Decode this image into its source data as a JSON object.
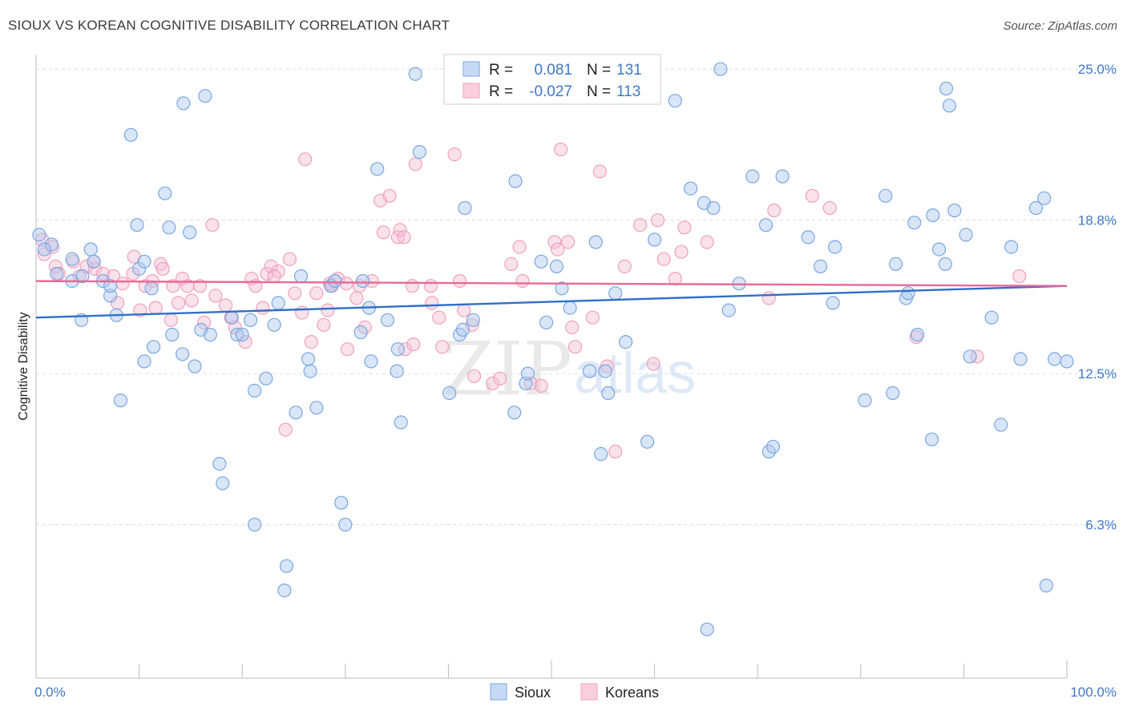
{
  "header": {
    "title": "SIOUX VS KOREAN COGNITIVE DISABILITY CORRELATION CHART",
    "source": "Source: ZipAtlas.com"
  },
  "watermark": {
    "zip": "ZIP",
    "atlas": "atlas"
  },
  "legend": {
    "rows": [
      {
        "r_label": "R =",
        "r_value": "0.081",
        "n_label": "N =",
        "n_value": "131",
        "color": "#7aa6e0"
      },
      {
        "r_label": "R =",
        "r_value": "-0.027",
        "n_label": "N =",
        "n_value": "113",
        "color": "#f0a0bc"
      }
    ]
  },
  "bottom_legend": [
    {
      "label": "Sioux",
      "color": "#7aa6e0"
    },
    {
      "label": "Koreans",
      "color": "#f0a0bc"
    }
  ],
  "chart_data": {
    "type": "scatter",
    "title": "SIOUX VS KOREAN COGNITIVE DISABILITY CORRELATION CHART",
    "xlabel": "",
    "ylabel": "Cognitive Disability",
    "xlim": [
      0,
      100
    ],
    "ylim": [
      0,
      25.6
    ],
    "x_tick_labels": [
      "0.0%",
      "100.0%"
    ],
    "y_ticks": [
      6.3,
      12.5,
      18.8,
      25.0
    ],
    "y_tick_labels": [
      "6.3%",
      "12.5%",
      "18.8%",
      "25.0%"
    ],
    "grid": true,
    "legend_position": "top-center",
    "series": [
      {
        "name": "Sioux",
        "color": "#7aa6e0",
        "line_color": "#2f6fc9",
        "trend": {
          "x": [
            0,
            100
          ],
          "y": [
            14.8,
            16.1
          ]
        },
        "points": [
          [
            0.3,
            18.2
          ],
          [
            1.5,
            17.8
          ],
          [
            0.8,
            17.6
          ],
          [
            2,
            16.6
          ],
          [
            3.5,
            17.2
          ],
          [
            3.5,
            16.3
          ],
          [
            4.5,
            16.5
          ],
          [
            4.4,
            14.7
          ],
          [
            5.3,
            17.6
          ],
          [
            5.6,
            17.1
          ],
          [
            6.5,
            16.3
          ],
          [
            7.2,
            15.7
          ],
          [
            7.8,
            14.9
          ],
          [
            8.2,
            11.4
          ],
          [
            9.2,
            22.3
          ],
          [
            9.8,
            18.6
          ],
          [
            10,
            16.8
          ],
          [
            10.5,
            13
          ],
          [
            10.5,
            17.1
          ],
          [
            11.2,
            16
          ],
          [
            11.4,
            13.6
          ],
          [
            12.5,
            19.9
          ],
          [
            12.9,
            18.5
          ],
          [
            13.2,
            14.1
          ],
          [
            14.2,
            13.3
          ],
          [
            14.3,
            23.6
          ],
          [
            14.9,
            18.3
          ],
          [
            15.4,
            12.8
          ],
          [
            16,
            14.3
          ],
          [
            16.4,
            23.9
          ],
          [
            16.9,
            14.1
          ],
          [
            17.8,
            8.8
          ],
          [
            18.1,
            8
          ],
          [
            19,
            14.8
          ],
          [
            19.5,
            14.1
          ],
          [
            20,
            14.1
          ],
          [
            20.8,
            14.7
          ],
          [
            21.2,
            11.8
          ],
          [
            21.2,
            6.3
          ],
          [
            22.3,
            12.3
          ],
          [
            23.1,
            14.5
          ],
          [
            23.5,
            15.4
          ],
          [
            24.1,
            3.6
          ],
          [
            24.3,
            4.6
          ],
          [
            25.2,
            10.9
          ],
          [
            25.7,
            16.5
          ],
          [
            26.4,
            13.1
          ],
          [
            26.6,
            12.6
          ],
          [
            27.2,
            11.1
          ],
          [
            28.6,
            16.1
          ],
          [
            29,
            16.3
          ],
          [
            29.6,
            7.2
          ],
          [
            30,
            6.3
          ],
          [
            31.5,
            14.2
          ],
          [
            31.7,
            16.3
          ],
          [
            32.3,
            15.2
          ],
          [
            32.5,
            13
          ],
          [
            33.1,
            20.9
          ],
          [
            34.1,
            14.7
          ],
          [
            35.1,
            13.5
          ],
          [
            35,
            12.6
          ],
          [
            35.4,
            10.5
          ],
          [
            36.8,
            24.8
          ],
          [
            40.1,
            11.7
          ],
          [
            41.1,
            14.1
          ],
          [
            41.4,
            14.3
          ],
          [
            41.6,
            19.3
          ],
          [
            42.4,
            14.7
          ],
          [
            46.5,
            20.4
          ],
          [
            47.5,
            12.1
          ],
          [
            47.7,
            12.5
          ],
          [
            49,
            17.1
          ],
          [
            49.5,
            14.6
          ],
          [
            50.5,
            16.9
          ],
          [
            51,
            16
          ],
          [
            51.8,
            15.2
          ],
          [
            53.7,
            12.6
          ],
          [
            54.3,
            17.9
          ],
          [
            54.8,
            9.2
          ],
          [
            55.5,
            11.7
          ],
          [
            55.2,
            12.6
          ],
          [
            56.2,
            15.8
          ],
          [
            57.2,
            13.8
          ],
          [
            59.3,
            9.7
          ],
          [
            60,
            18
          ],
          [
            62,
            23.7
          ],
          [
            63.5,
            20.1
          ],
          [
            64.8,
            19.5
          ],
          [
            65.7,
            19.3
          ],
          [
            66.4,
            25
          ],
          [
            67.2,
            15.1
          ],
          [
            68.2,
            16.2
          ],
          [
            69.5,
            20.6
          ],
          [
            70.8,
            18.6
          ],
          [
            71.1,
            9.3
          ],
          [
            71.5,
            9.5
          ],
          [
            72.4,
            20.6
          ],
          [
            74.9,
            18.1
          ],
          [
            76.1,
            16.9
          ],
          [
            77.5,
            17.7
          ],
          [
            77.3,
            15.4
          ],
          [
            80.4,
            11.4
          ],
          [
            83.1,
            11.7
          ],
          [
            82.4,
            19.8
          ],
          [
            83.4,
            17
          ],
          [
            84.4,
            15.6
          ],
          [
            84.6,
            15.8
          ],
          [
            85.5,
            14.1
          ],
          [
            85.2,
            18.7
          ],
          [
            86.9,
            9.8
          ],
          [
            87,
            19
          ],
          [
            87.6,
            17.6
          ],
          [
            88.2,
            17
          ],
          [
            88.3,
            24.2
          ],
          [
            88.6,
            23.5
          ],
          [
            89.1,
            19.2
          ],
          [
            90.2,
            18.2
          ],
          [
            92.7,
            14.8
          ],
          [
            93.6,
            10.4
          ],
          [
            94.6,
            17.7
          ],
          [
            95.5,
            13.1
          ],
          [
            97,
            19.3
          ],
          [
            97.8,
            19.7
          ],
          [
            98.8,
            13.1
          ],
          [
            98,
            3.8
          ],
          [
            100,
            13
          ],
          [
            90.6,
            13.2
          ],
          [
            65.1,
            2
          ],
          [
            37.2,
            21.6
          ],
          [
            46.4,
            10.9
          ],
          [
            7.2,
            16.1
          ]
        ]
      },
      {
        "name": "Koreans",
        "color": "#f0a0bc",
        "line_color": "#e86a96",
        "trend": {
          "x": [
            0,
            100
          ],
          "y": [
            16.3,
            16.1
          ]
        },
        "points": [
          [
            0.6,
            18
          ],
          [
            0.8,
            17.4
          ],
          [
            1.6,
            17.7
          ],
          [
            1.9,
            16.9
          ],
          [
            2.2,
            16.6
          ],
          [
            3.6,
            17.1
          ],
          [
            4.2,
            16.5
          ],
          [
            4.9,
            16.9
          ],
          [
            5.6,
            17.1
          ],
          [
            5.7,
            16.8
          ],
          [
            6.5,
            16.6
          ],
          [
            7.5,
            16.5
          ],
          [
            7.9,
            15.4
          ],
          [
            8.4,
            16.2
          ],
          [
            9.4,
            16.6
          ],
          [
            9.5,
            17.3
          ],
          [
            10.1,
            15.1
          ],
          [
            10.6,
            16.1
          ],
          [
            11.3,
            16.3
          ],
          [
            11.6,
            15.2
          ],
          [
            12.1,
            17
          ],
          [
            12.3,
            16.8
          ],
          [
            13.3,
            16.1
          ],
          [
            13.8,
            15.4
          ],
          [
            14.2,
            16.4
          ],
          [
            14.7,
            16.1
          ],
          [
            15.1,
            15.5
          ],
          [
            15.9,
            16.1
          ],
          [
            16.3,
            14.6
          ],
          [
            17.4,
            15.7
          ],
          [
            17.1,
            18.6
          ],
          [
            18.4,
            15.3
          ],
          [
            18.9,
            14.8
          ],
          [
            19.3,
            14.4
          ],
          [
            20.3,
            13.8
          ],
          [
            20.9,
            16.4
          ],
          [
            21.3,
            16.1
          ],
          [
            22,
            15.2
          ],
          [
            22.4,
            16.6
          ],
          [
            22.8,
            16.9
          ],
          [
            23.5,
            16.7
          ],
          [
            24.2,
            10.2
          ],
          [
            24.6,
            17.2
          ],
          [
            25.1,
            15.8
          ],
          [
            25.8,
            15
          ],
          [
            26.1,
            21.3
          ],
          [
            26.7,
            13.8
          ],
          [
            27.2,
            15.8
          ],
          [
            27.9,
            14.5
          ],
          [
            28.3,
            15.1
          ],
          [
            28.5,
            16.2
          ],
          [
            29.3,
            16.4
          ],
          [
            30.1,
            16.2
          ],
          [
            30.2,
            13.5
          ],
          [
            31.1,
            15.6
          ],
          [
            31.4,
            16.1
          ],
          [
            31.9,
            14.4
          ],
          [
            32.6,
            16.3
          ],
          [
            33.4,
            19.6
          ],
          [
            33.7,
            18.3
          ],
          [
            34.3,
            19.8
          ],
          [
            35.1,
            18.1
          ],
          [
            35.3,
            18.4
          ],
          [
            35.8,
            13.5
          ],
          [
            36.5,
            16.1
          ],
          [
            36.6,
            13.7
          ],
          [
            36.8,
            21.1
          ],
          [
            38.3,
            16.1
          ],
          [
            38.4,
            15.4
          ],
          [
            39.1,
            14.8
          ],
          [
            39.4,
            13.6
          ],
          [
            40.6,
            21.5
          ],
          [
            41.1,
            16.3
          ],
          [
            41.5,
            15.1
          ],
          [
            42.3,
            14.5
          ],
          [
            42.5,
            12.4
          ],
          [
            44.3,
            12.1
          ],
          [
            45,
            12.3
          ],
          [
            46.1,
            17
          ],
          [
            46.9,
            17.7
          ],
          [
            47.2,
            16.3
          ],
          [
            48,
            12.1
          ],
          [
            49,
            12
          ],
          [
            50.3,
            17.9
          ],
          [
            50.6,
            17.6
          ],
          [
            50.9,
            21.7
          ],
          [
            51.6,
            17.9
          ],
          [
            52,
            14.4
          ],
          [
            52.3,
            13.6
          ],
          [
            54,
            14.8
          ],
          [
            54.7,
            20.8
          ],
          [
            55.4,
            12.8
          ],
          [
            56.2,
            9.3
          ],
          [
            57.1,
            16.9
          ],
          [
            58.6,
            18.6
          ],
          [
            59.9,
            12.9
          ],
          [
            60.3,
            18.8
          ],
          [
            60.9,
            17.2
          ],
          [
            62,
            16.4
          ],
          [
            62.6,
            17.5
          ],
          [
            62.9,
            18.5
          ],
          [
            65.1,
            17.9
          ],
          [
            71.1,
            15.6
          ],
          [
            71.6,
            19.2
          ],
          [
            75.3,
            19.8
          ],
          [
            77,
            19.3
          ],
          [
            85.4,
            14
          ],
          [
            91.3,
            13.2
          ],
          [
            95.4,
            16.5
          ],
          [
            28.7,
            16.1
          ],
          [
            35.7,
            18.1
          ],
          [
            23.1,
            16.5
          ],
          [
            13.1,
            14.7
          ]
        ]
      }
    ]
  }
}
